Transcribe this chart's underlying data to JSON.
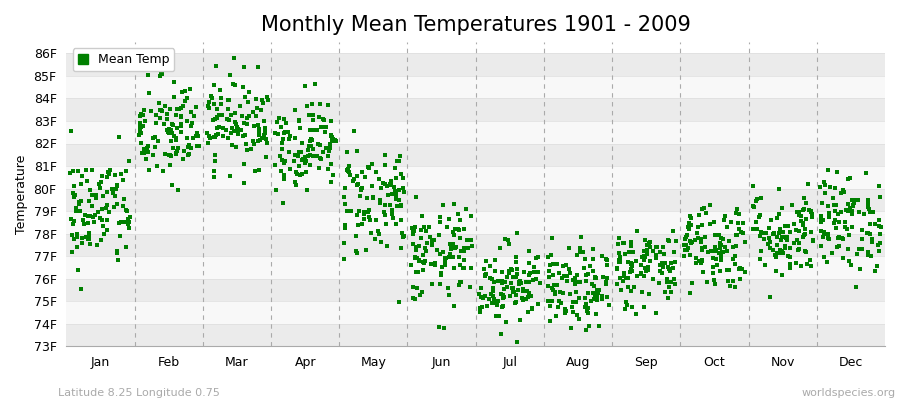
{
  "title": "Monthly Mean Temperatures 1901 - 2009",
  "ylabel": "Temperature",
  "xlabel_labels": [
    "Jan",
    "Feb",
    "Mar",
    "Apr",
    "May",
    "Jun",
    "Jul",
    "Aug",
    "Sep",
    "Oct",
    "Nov",
    "Dec"
  ],
  "ytick_labels": [
    "73F",
    "74F",
    "75F",
    "76F",
    "77F",
    "78F",
    "79F",
    "80F",
    "81F",
    "82F",
    "83F",
    "84F",
    "85F",
    "86F"
  ],
  "ytick_values": [
    73,
    74,
    75,
    76,
    77,
    78,
    79,
    80,
    81,
    82,
    83,
    84,
    85,
    86
  ],
  "ylim": [
    73,
    86.5
  ],
  "dot_color": "#008000",
  "dot_size": 9,
  "background_color": "#ffffff",
  "plot_bg_light": "#ebebeb",
  "plot_bg_white": "#f8f8f8",
  "grid_color": "#dddddd",
  "dashed_line_color": "#aaaaaa",
  "legend_label": "Mean Temp",
  "footer_left": "Latitude 8.25 Longitude 0.75",
  "footer_right": "worldspecies.org",
  "title_fontsize": 15,
  "axis_label_fontsize": 9,
  "tick_label_fontsize": 9,
  "footer_fontsize": 8,
  "years": 109,
  "month_means": [
    79.0,
    82.5,
    83.0,
    82.0,
    79.5,
    77.0,
    75.8,
    75.5,
    76.5,
    77.5,
    78.0,
    78.5
  ],
  "month_stds": [
    1.3,
    1.2,
    1.0,
    1.0,
    1.3,
    1.1,
    0.9,
    0.9,
    0.9,
    1.0,
    1.0,
    1.1
  ]
}
